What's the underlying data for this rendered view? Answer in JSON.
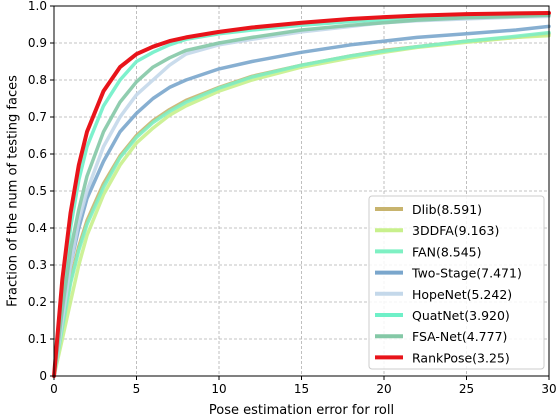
{
  "chart_data": {
    "type": "line",
    "title": "",
    "xlabel": "Pose estimation error for roll",
    "ylabel": "Fraction of the num of testing faces",
    "xlim": [
      0,
      30
    ],
    "ylim": [
      0,
      1.0
    ],
    "xticks": [
      "0",
      "5",
      "10",
      "15",
      "20",
      "25",
      "30"
    ],
    "yticks": [
      "0",
      "0.1",
      "0.2",
      "0.3",
      "0.4",
      "0.5",
      "0.6",
      "0.7",
      "0.8",
      "0.9",
      "1.0"
    ],
    "grid": true,
    "legend_position": "lower-right",
    "series": [
      {
        "name": "Dlib(8.591)",
        "color": "#c8b46e",
        "x": [
          0,
          0.5,
          1,
          1.5,
          2,
          3,
          4,
          5,
          6,
          7,
          8,
          10,
          12,
          15,
          18,
          20,
          22,
          25,
          28,
          30
        ],
        "y": [
          0,
          0.14,
          0.26,
          0.35,
          0.42,
          0.52,
          0.595,
          0.65,
          0.69,
          0.72,
          0.745,
          0.78,
          0.81,
          0.84,
          0.865,
          0.88,
          0.89,
          0.905,
          0.915,
          0.925
        ]
      },
      {
        "name": "3DDFA(9.163)",
        "color": "#c8f08c",
        "x": [
          0,
          0.5,
          1,
          1.5,
          2,
          3,
          4,
          5,
          6,
          7,
          8,
          10,
          12,
          15,
          18,
          20,
          22,
          25,
          28,
          30
        ],
        "y": [
          0,
          0.1,
          0.2,
          0.3,
          0.38,
          0.49,
          0.57,
          0.63,
          0.67,
          0.705,
          0.73,
          0.77,
          0.8,
          0.835,
          0.86,
          0.875,
          0.888,
          0.902,
          0.915,
          0.92
        ]
      },
      {
        "name": "FAN(8.545)",
        "color": "#7ef0c3",
        "x": [
          0,
          0.5,
          1,
          1.5,
          2,
          3,
          4,
          5,
          6,
          7,
          8,
          10,
          12,
          15,
          18,
          20,
          22,
          25,
          28,
          30
        ],
        "y": [
          0,
          0.13,
          0.25,
          0.34,
          0.41,
          0.51,
          0.59,
          0.645,
          0.685,
          0.715,
          0.74,
          0.778,
          0.808,
          0.84,
          0.865,
          0.878,
          0.89,
          0.905,
          0.918,
          0.928
        ]
      },
      {
        "name": "Two-Stage(7.471)",
        "color": "#7aa6cc",
        "x": [
          0,
          0.5,
          1,
          1.5,
          2,
          3,
          4,
          5,
          6,
          7,
          8,
          10,
          12,
          15,
          18,
          20,
          22,
          25,
          28,
          30
        ],
        "y": [
          0,
          0.17,
          0.3,
          0.4,
          0.48,
          0.58,
          0.66,
          0.71,
          0.75,
          0.78,
          0.8,
          0.83,
          0.85,
          0.875,
          0.895,
          0.905,
          0.915,
          0.925,
          0.935,
          0.945
        ]
      },
      {
        "name": "HopeNet(5.242)",
        "color": "#c4d8ea",
        "x": [
          0,
          0.5,
          1,
          1.5,
          2,
          3,
          4,
          5,
          6,
          7,
          8,
          10,
          12,
          15,
          18,
          20,
          22,
          25,
          28,
          30
        ],
        "y": [
          0,
          0.15,
          0.3,
          0.42,
          0.5,
          0.62,
          0.7,
          0.76,
          0.8,
          0.84,
          0.87,
          0.895,
          0.91,
          0.93,
          0.945,
          0.955,
          0.96,
          0.965,
          0.97,
          0.972
        ]
      },
      {
        "name": "QuatNet(3.920)",
        "color": "#6ff0c8",
        "x": [
          0,
          0.5,
          1,
          1.5,
          2,
          3,
          4,
          5,
          6,
          7,
          8,
          10,
          12,
          15,
          18,
          20,
          22,
          25,
          28,
          30
        ],
        "y": [
          0,
          0.22,
          0.4,
          0.53,
          0.62,
          0.73,
          0.8,
          0.85,
          0.875,
          0.895,
          0.91,
          0.925,
          0.935,
          0.948,
          0.958,
          0.963,
          0.967,
          0.972,
          0.975,
          0.976
        ]
      },
      {
        "name": "FSA-Net(4.777)",
        "color": "#84c8a6",
        "x": [
          0,
          0.5,
          1,
          1.5,
          2,
          3,
          4,
          5,
          6,
          7,
          8,
          10,
          12,
          15,
          18,
          20,
          22,
          25,
          28,
          30
        ],
        "y": [
          0,
          0.18,
          0.34,
          0.45,
          0.54,
          0.66,
          0.74,
          0.795,
          0.835,
          0.86,
          0.88,
          0.9,
          0.915,
          0.935,
          0.948,
          0.955,
          0.962,
          0.968,
          0.972,
          0.975
        ]
      },
      {
        "name": "RankPose(3.25)",
        "color": "#e8141a",
        "x": [
          0,
          0.5,
          1,
          1.5,
          2,
          3,
          4,
          5,
          6,
          7,
          8,
          10,
          12,
          15,
          18,
          20,
          22,
          25,
          28,
          30
        ],
        "y": [
          0,
          0.26,
          0.44,
          0.57,
          0.66,
          0.77,
          0.835,
          0.87,
          0.89,
          0.905,
          0.915,
          0.93,
          0.942,
          0.955,
          0.965,
          0.97,
          0.974,
          0.978,
          0.98,
          0.981
        ]
      }
    ]
  }
}
